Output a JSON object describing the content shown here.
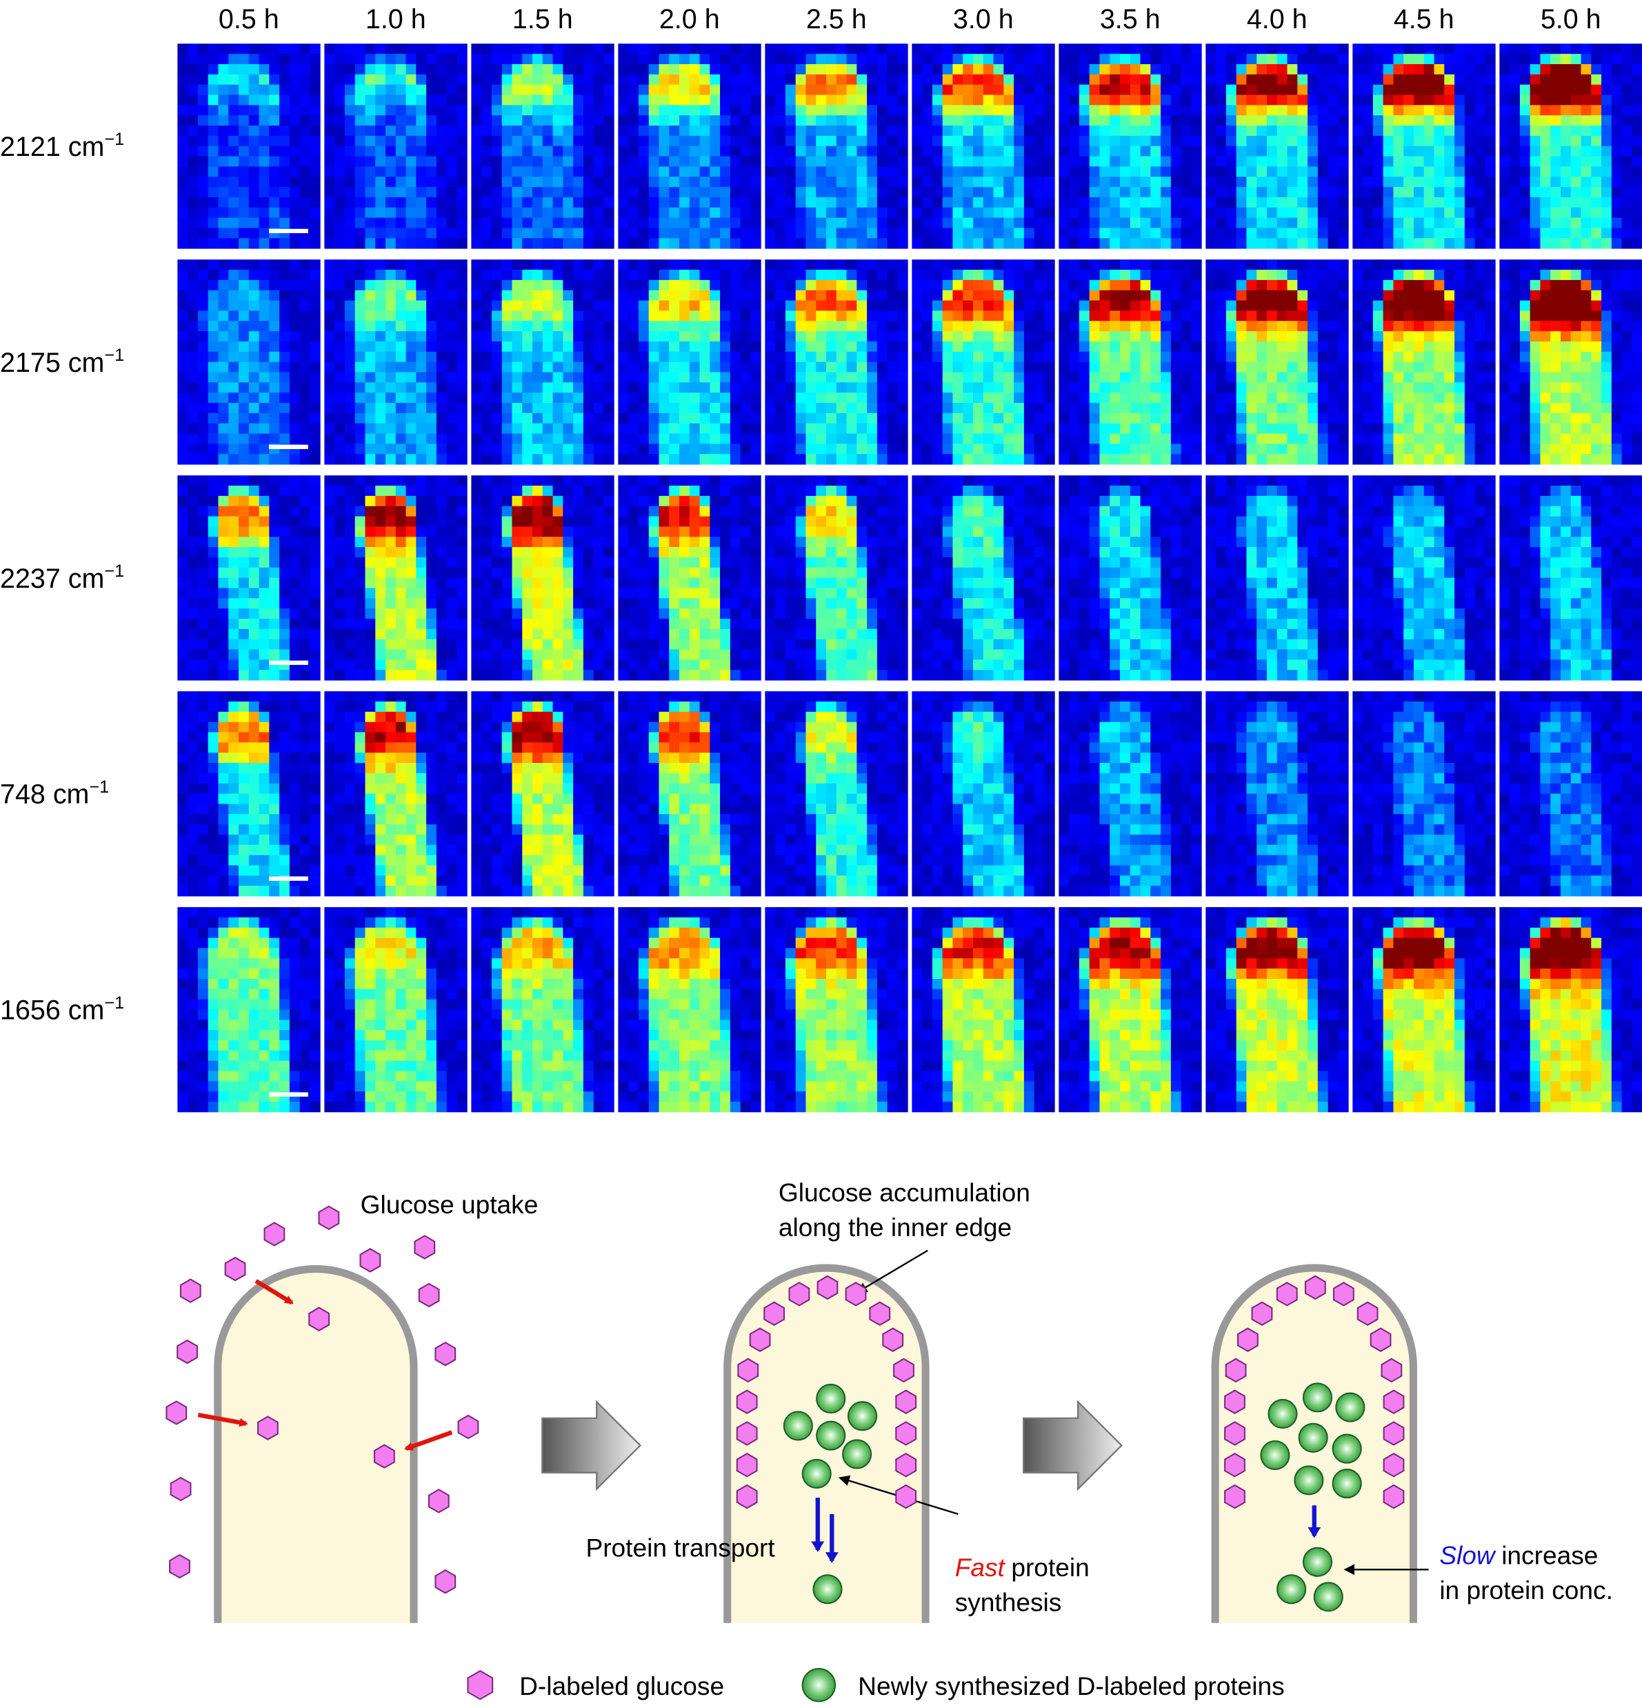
{
  "columns": [
    "0.5 h",
    "1.0 h",
    "1.5 h",
    "2.0 h",
    "2.5 h",
    "3.0 h",
    "3.5 h",
    "4.0 h",
    "4.5 h",
    "5.0 h"
  ],
  "rows": [
    {
      "label": "2121 cm",
      "sup": "−1"
    },
    {
      "label": "2175 cm",
      "sup": "−1"
    },
    {
      "label": "2237 cm",
      "sup": "−1"
    },
    {
      "label": "748 cm",
      "sup": "−1"
    },
    {
      "label": "1656 cm",
      "sup": "−1"
    }
  ],
  "diagram": {
    "uptake": "Glucose uptake",
    "accumulation": [
      "Glucose accumulation",
      "along the inner edge"
    ],
    "transport": "Protein transport",
    "synthesis": {
      "emphasis": "Fast",
      "rest": "protein",
      "line2": "synthesis"
    },
    "increase": {
      "emphasis": "Slow",
      "rest": "increase",
      "line2": "in protein conc."
    }
  },
  "legend": [
    "D-labeled glucose",
    "Newly synthesized D-labeled proteins"
  ]
}
